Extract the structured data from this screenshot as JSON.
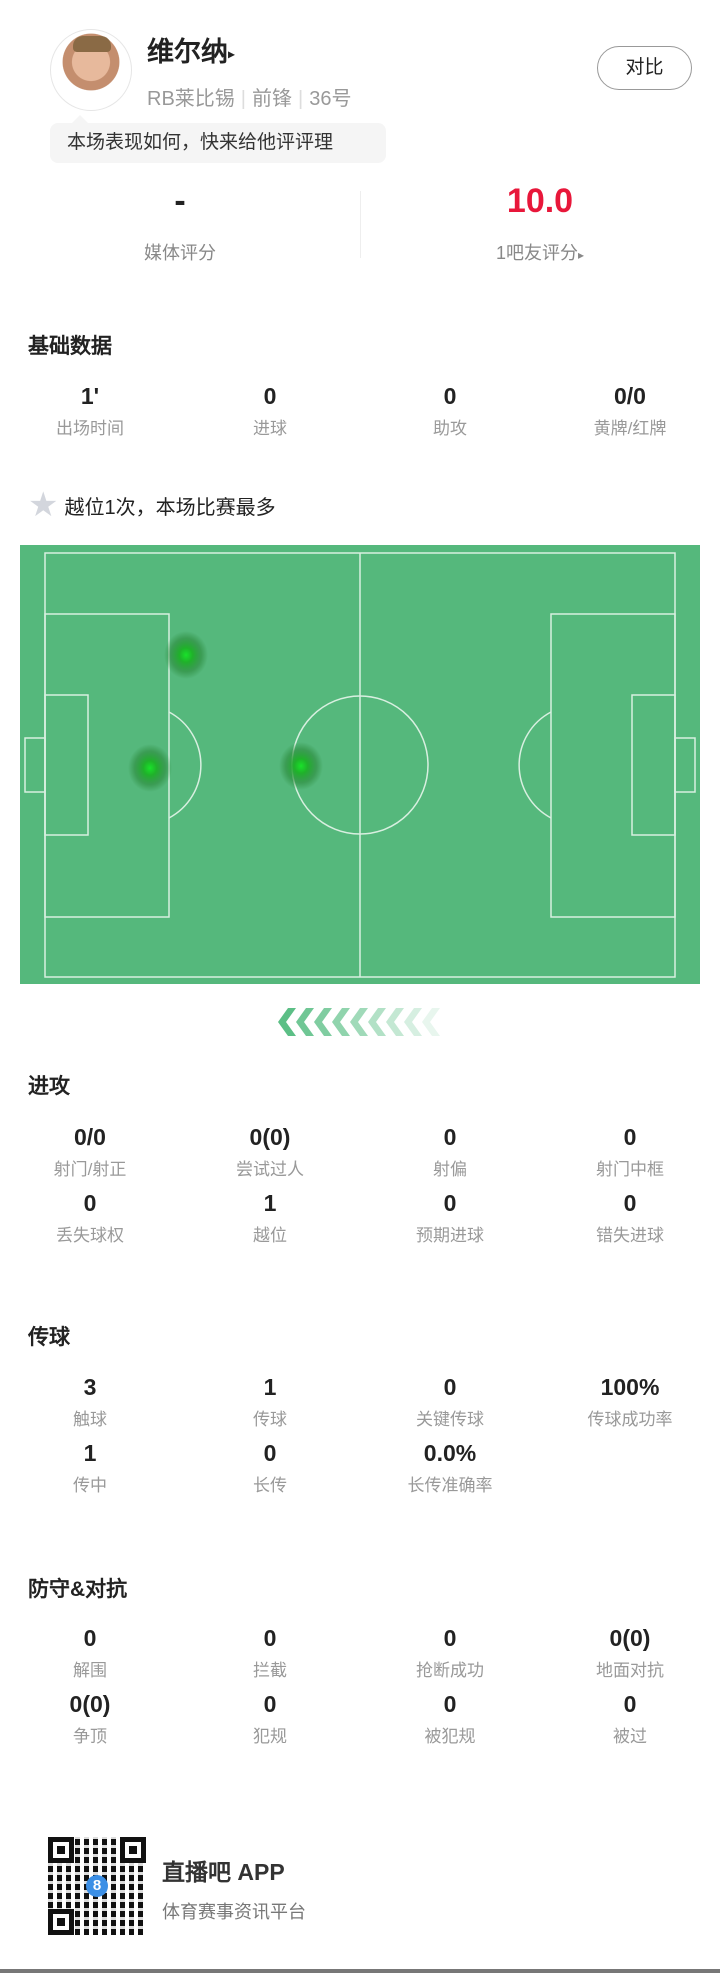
{
  "player": {
    "name": "维尔纳",
    "name_arrow": "▸",
    "team": "RB莱比锡",
    "position": "前锋",
    "number": "36号",
    "compare_label": "对比",
    "prompt": "本场表现如何，快来给他评评理"
  },
  "ratings": {
    "media": {
      "value": "-",
      "label": "媒体评分"
    },
    "fans": {
      "value": "10.0",
      "label": "1吧友评分",
      "arrow": "▸",
      "color": "#e8173a"
    }
  },
  "basic": {
    "title": "基础数据",
    "stats": [
      {
        "value": "1'",
        "label": "出场时间"
      },
      {
        "value": "0",
        "label": "进球"
      },
      {
        "value": "0",
        "label": "助攻"
      },
      {
        "value": "0/0",
        "label": "黄牌/红牌"
      }
    ]
  },
  "highlight": {
    "icon": "star-icon",
    "text": "越位1次，本场比赛最多"
  },
  "pitch": {
    "color": "#55b87c",
    "line_color": "#d8efe0",
    "heat_color": "#19e22a"
  },
  "attack": {
    "title": "进攻",
    "stats": [
      {
        "value": "0/0",
        "label": "射门/射正"
      },
      {
        "value": "0(0)",
        "label": "尝试过人"
      },
      {
        "value": "0",
        "label": "射偏"
      },
      {
        "value": "0",
        "label": "射门中框"
      },
      {
        "value": "0",
        "label": "丢失球权"
      },
      {
        "value": "1",
        "label": "越位"
      },
      {
        "value": "0",
        "label": "预期进球"
      },
      {
        "value": "0",
        "label": "错失进球"
      }
    ]
  },
  "passing": {
    "title": "传球",
    "stats": [
      {
        "value": "3",
        "label": "触球"
      },
      {
        "value": "1",
        "label": "传球"
      },
      {
        "value": "0",
        "label": "关键传球"
      },
      {
        "value": "100%",
        "label": "传球成功率"
      },
      {
        "value": "1",
        "label": "传中"
      },
      {
        "value": "0",
        "label": "长传"
      },
      {
        "value": "0.0%",
        "label": "长传准确率"
      }
    ]
  },
  "defense": {
    "title": "防守&对抗",
    "stats": [
      {
        "value": "0",
        "label": "解围"
      },
      {
        "value": "0",
        "label": "拦截"
      },
      {
        "value": "0",
        "label": "抢断成功"
      },
      {
        "value": "0(0)",
        "label": "地面对抗"
      },
      {
        "value": "0(0)",
        "label": "争顶"
      },
      {
        "value": "0",
        "label": "犯规"
      },
      {
        "value": "0",
        "label": "被犯规"
      },
      {
        "value": "0",
        "label": "被过"
      }
    ]
  },
  "footer": {
    "app_name": "直播吧 APP",
    "tagline": "体育赛事资讯平台",
    "qr_logo": "8"
  }
}
